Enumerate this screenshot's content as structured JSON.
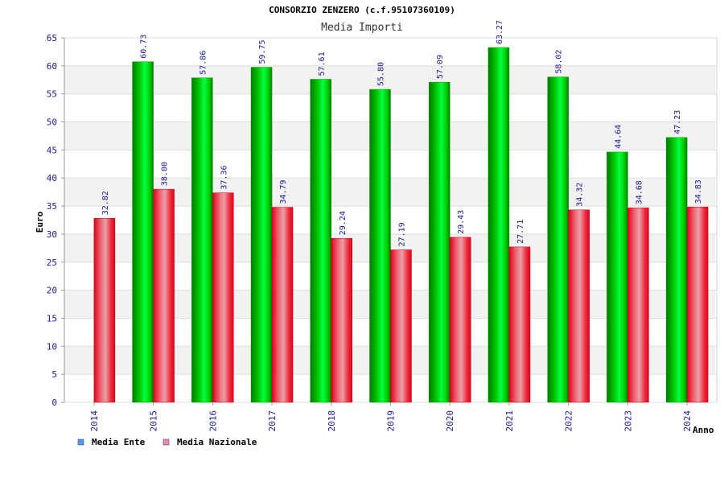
{
  "chart_data": {
    "type": "bar",
    "title": "CONSORZIO ZENZERO (c.f.95107360109)",
    "subtitle": "Media Importi",
    "xlabel": "Anno",
    "ylabel": "Euro",
    "ylim": [
      0,
      65
    ],
    "yticks": [
      0,
      5,
      10,
      15,
      20,
      25,
      30,
      35,
      40,
      45,
      50,
      55,
      60,
      65
    ],
    "categories": [
      "2014",
      "2015",
      "2016",
      "2017",
      "2018",
      "2019",
      "2020",
      "2021",
      "2022",
      "2023",
      "2024"
    ],
    "series": [
      {
        "name": "Media Ente",
        "values": [
          null,
          60.73,
          57.86,
          59.75,
          57.61,
          55.8,
          57.09,
          63.27,
          58.02,
          44.64,
          47.23
        ],
        "labels": [
          null,
          "60.73",
          "57.86",
          "59.75",
          "57.61",
          "55.80",
          "57.09",
          "63.27",
          "58.02",
          "44.64",
          "47.23"
        ]
      },
      {
        "name": "Media Nazionale",
        "values": [
          32.82,
          38.0,
          37.36,
          34.79,
          29.24,
          27.19,
          29.43,
          27.71,
          34.32,
          34.68,
          34.83
        ],
        "labels": [
          "32.82",
          "38.00",
          "37.36",
          "34.79",
          "29.24",
          "27.19",
          "29.43",
          "27.71",
          "34.32",
          "34.68",
          "34.83"
        ]
      }
    ],
    "legend": [
      {
        "name": "Media Ente",
        "color": "#5599ee"
      },
      {
        "name": "Media Nazionale",
        "color": "#ee88bb"
      }
    ],
    "grid": true
  }
}
